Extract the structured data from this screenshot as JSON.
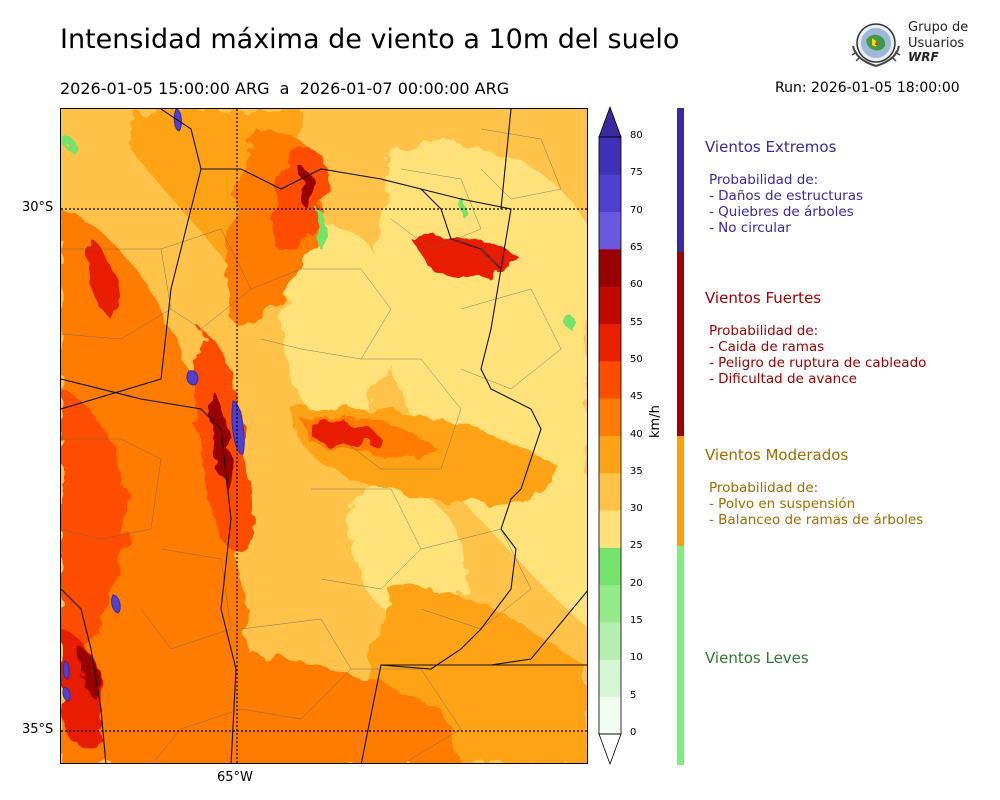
{
  "title": "Intensidad máxima de viento a 10m del suelo",
  "period": "2026-01-05 15:00:00 ARG  a  2026-01-07 00:00:00 ARG",
  "run": "Run: 2026-01-05 18:00:00",
  "logo": {
    "line1": "Grupo de",
    "line2": "Usuarios",
    "line3": "WRF"
  },
  "map": {
    "lat_labels": [
      "30°S",
      "35°S"
    ],
    "lon_labels": [
      "65°W"
    ],
    "features": [
      "province-borders",
      "department-borders",
      "gridlines"
    ]
  },
  "colorbar": {
    "unit": "km/h",
    "ticks": [
      "0",
      "5",
      "10",
      "15",
      "20",
      "25",
      "30",
      "35",
      "40",
      "45",
      "50",
      "55",
      "60",
      "65",
      "70",
      "75",
      "80"
    ],
    "colors": [
      "#f0fdf0",
      "#d6f7d6",
      "#b6f0b0",
      "#95eb8c",
      "#74e36b",
      "#ffe27a",
      "#ffc34a",
      "#ffa316",
      "#ff7b06",
      "#ff4d00",
      "#e81f00",
      "#c00a00",
      "#990000",
      "#6b5ae0",
      "#5040d0",
      "#4030b8",
      "#3a2aa0"
    ]
  },
  "categories": [
    {
      "name": "Vientos Extremos",
      "color": "#3b28a8",
      "desc": [
        "Probabilidad de:",
        "- Daños de estructuras",
        "- Quiebres de árboles",
        "- No circular"
      ]
    },
    {
      "name": "Vientos Fuertes",
      "color": "#a00000",
      "desc": [
        "Probabilidad de:",
        "- Caida de ramas",
        "- Peligro de ruptura de cableado",
        "- Dificultad de avance"
      ]
    },
    {
      "name": "Vientos Moderados",
      "color": "#a36b00",
      "desc": [
        "Probabilidad de:",
        "- Polvo en suspensión",
        "- Balanceo de ramas de árboles"
      ]
    },
    {
      "name": "Vientos Leves",
      "color": "#2f7a2f",
      "desc": []
    }
  ],
  "category_bar_colors": [
    "#3b28a8",
    "#a00000",
    "#ffa000",
    "#7af27a"
  ]
}
